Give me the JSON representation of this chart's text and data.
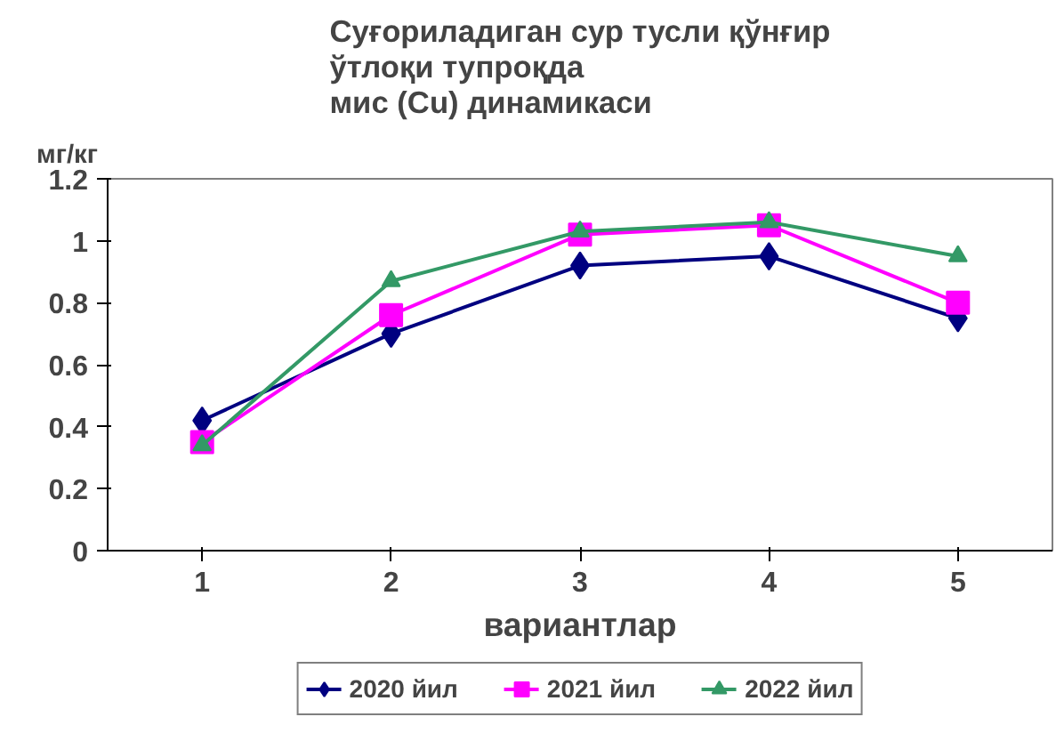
{
  "chart_data": {
    "type": "line",
    "title": "Суғориладиган сур тусли қўнғир\nўтлоқи тупроқда\nмис (Cu) динамикаси",
    "ylabel": "мг/кг",
    "xlabel": "вариантлар",
    "categories": [
      "1",
      "2",
      "3",
      "4",
      "5"
    ],
    "ylim": [
      0,
      1.2
    ],
    "yticks": [
      0,
      0.2,
      0.4,
      0.6,
      0.8,
      1,
      1.2
    ],
    "grid": false,
    "legend": "bottom",
    "series": [
      {
        "name": "2020 йил",
        "color": "#000080",
        "marker": "diamond",
        "values": [
          0.42,
          0.7,
          0.92,
          0.95,
          0.75
        ]
      },
      {
        "name": "2021 йил",
        "color": "#ff00ff",
        "marker": "square",
        "values": [
          0.35,
          0.76,
          1.02,
          1.05,
          0.8
        ]
      },
      {
        "name": "2022 йил",
        "color": "#339966",
        "marker": "triangle",
        "values": [
          0.34,
          0.87,
          1.03,
          1.06,
          0.95
        ]
      }
    ]
  }
}
